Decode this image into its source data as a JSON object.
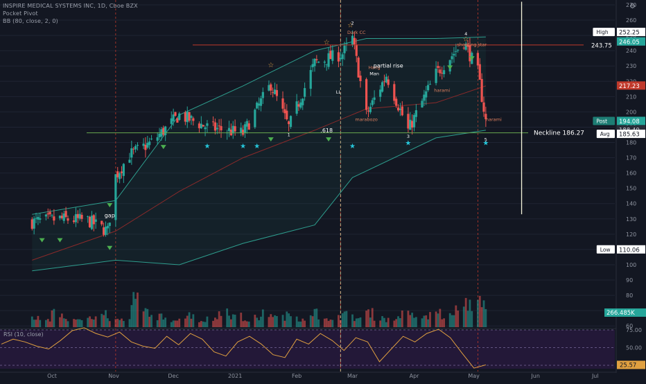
{
  "legend": {
    "symbol": "INSPIRE MEDICAL SYSTEMS INC, 1D, Cboe BZX",
    "indicator_1": "Pocket Pivot",
    "indicator_2": "BB (80, close, 2, 0)"
  },
  "colors": {
    "background": "#131722",
    "up": "#26a69a",
    "down": "#ef5350",
    "ma": "#8a2a2a",
    "bb": "#2e9e8e",
    "rsi": "#e0a040",
    "rsi_pane": "#2a1a40",
    "neckline": "#6aa84f",
    "resistance": "#c0392b",
    "projection": "#f5f5dc"
  },
  "chart_data": {
    "type": "candlestick",
    "symbol": "INSPIRE MEDICAL SYSTEMS INC",
    "interval": "1D",
    "y_ticks": [
      270,
      260,
      250,
      240,
      230,
      220,
      210,
      200,
      190,
      180,
      170,
      160,
      150,
      140,
      130,
      120,
      110,
      100,
      90,
      80,
      70,
      60
    ],
    "x_ticks": [
      "Oct",
      "Nov",
      "Dec",
      "2021",
      "Feb",
      "Mar",
      "Apr",
      "May",
      "Jun",
      "Jul"
    ],
    "ohlc_anchors": [
      {
        "date": "2020-09-21",
        "close": 128
      },
      {
        "date": "2020-10-05",
        "close": 130
      },
      {
        "date": "2020-10-19",
        "close": 129
      },
      {
        "date": "2020-10-29",
        "close": 122
      },
      {
        "date": "2020-11-02",
        "close": 158
      },
      {
        "date": "2020-11-09",
        "close": 172
      },
      {
        "date": "2020-11-20",
        "close": 180
      },
      {
        "date": "2020-12-04",
        "close": 198
      },
      {
        "date": "2020-12-18",
        "close": 190
      },
      {
        "date": "2021-01-05",
        "close": 186
      },
      {
        "date": "2021-01-19",
        "close": 218
      },
      {
        "date": "2021-01-28",
        "close": 190
      },
      {
        "date": "2021-02-10",
        "close": 232
      },
      {
        "date": "2021-02-24",
        "close": 238
      },
      {
        "date": "2021-03-01",
        "close": 248
      },
      {
        "date": "2021-03-08",
        "close": 198
      },
      {
        "date": "2021-03-18",
        "close": 224
      },
      {
        "date": "2021-03-29",
        "close": 188
      },
      {
        "date": "2021-04-12",
        "close": 225
      },
      {
        "date": "2021-04-26",
        "close": 246
      },
      {
        "date": "2021-05-03",
        "close": 226
      },
      {
        "date": "2021-05-07",
        "close": 194
      }
    ],
    "ma_line": [
      {
        "date": "2020-09-21",
        "value": 103
      },
      {
        "date": "2020-11-02",
        "value": 122
      },
      {
        "date": "2020-12-04",
        "value": 148
      },
      {
        "date": "2021-01-05",
        "value": 170
      },
      {
        "date": "2021-02-10",
        "value": 188
      },
      {
        "date": "2021-03-08",
        "value": 202
      },
      {
        "date": "2021-04-12",
        "value": 206
      },
      {
        "date": "2021-05-07",
        "value": 217
      }
    ],
    "bb_upper": [
      {
        "date": "2020-09-21",
        "value": 133
      },
      {
        "date": "2020-11-02",
        "value": 142
      },
      {
        "date": "2020-12-04",
        "value": 198
      },
      {
        "date": "2021-01-05",
        "value": 217
      },
      {
        "date": "2021-02-10",
        "value": 240
      },
      {
        "date": "2021-03-08",
        "value": 248
      },
      {
        "date": "2021-04-12",
        "value": 248
      },
      {
        "date": "2021-05-07",
        "value": 249
      }
    ],
    "bb_lower": [
      {
        "date": "2020-09-21",
        "value": 96
      },
      {
        "date": "2020-11-02",
        "value": 103
      },
      {
        "date": "2020-12-04",
        "value": 100
      },
      {
        "date": "2021-01-05",
        "value": 114
      },
      {
        "date": "2021-02-10",
        "value": 126
      },
      {
        "date": "2021-03-01",
        "value": 157
      },
      {
        "date": "2021-04-12",
        "value": 183
      },
      {
        "date": "2021-05-07",
        "value": 188
      }
    ],
    "price_labels": [
      {
        "text": "High",
        "value": "252.25",
        "price": 252.25,
        "style": "white"
      },
      {
        "text": "",
        "value": "246.05",
        "price": 246.05,
        "style": "teal"
      },
      {
        "text": "",
        "value": "243.75",
        "price": 243.75,
        "style": "plain"
      },
      {
        "text": "",
        "value": "217.23",
        "price": 217.23,
        "style": "red"
      },
      {
        "text": "Post",
        "value": "194.08",
        "price": 194.08,
        "style": "teal"
      },
      {
        "text": "",
        "value": "188.40",
        "price": 188.4,
        "style": "dark"
      },
      {
        "text": "Avg",
        "value": "185.63",
        "price": 185.63,
        "style": "white"
      },
      {
        "text": "Low",
        "value": "110.06",
        "price": 110.06,
        "style": "white"
      }
    ],
    "neckline": {
      "label": "Neckline 186.27",
      "value": 186.27
    },
    "resistance": {
      "value": 243.75
    },
    "annotations": [
      {
        "text": "gap",
        "date": "2020-10-30",
        "price": 131
      },
      {
        "text": "1",
        "date": "2021-01-28",
        "price": 184
      },
      {
        "text": ".618",
        "date": "2021-02-16",
        "price": 186.5
      },
      {
        "text": "LL",
        "date": "2021-02-22",
        "price": 212
      },
      {
        "text": "2",
        "date": "2021-03-01",
        "price": 257
      },
      {
        "text": "Dark CC",
        "date": "2021-03-03",
        "price": 251
      },
      {
        "text": "Hang",
        "date": "2021-03-12",
        "price": 228
      },
      {
        "text": "Man",
        "date": "2021-03-12",
        "price": 224
      },
      {
        "text": "partial rise",
        "date": "2021-03-19",
        "price": 229
      },
      {
        "text": "marabozo",
        "date": "2021-03-08",
        "price": 194
      },
      {
        "text": "3",
        "date": "2021-03-29",
        "price": 183
      },
      {
        "text": "harami",
        "date": "2021-04-15",
        "price": 213
      },
      {
        "text": "4",
        "date": "2021-04-27",
        "price": 250
      },
      {
        "text": "shooting star",
        "date": "2021-04-30",
        "price": 243
      },
      {
        "text": "5",
        "date": "2021-05-07",
        "price": 181
      },
      {
        "text": "harami",
        "date": "2021-05-11",
        "price": 194
      }
    ],
    "projection": {
      "from_price": 272,
      "mid_price": 185,
      "to_price": 133,
      "date": "2021-05-25"
    },
    "volume_badge": "266.485K",
    "rsi": {
      "label": "RSI (10, close)",
      "ticks": [
        75,
        50,
        25
      ],
      "current": 25.57,
      "series": [
        55,
        62,
        58,
        52,
        48,
        60,
        74,
        78,
        70,
        65,
        72,
        58,
        52,
        49,
        66,
        54,
        70,
        62,
        44,
        38,
        58,
        66,
        55,
        40,
        36,
        62,
        55,
        70,
        60,
        46,
        64,
        58,
        30,
        48,
        66,
        58,
        70,
        76,
        64,
        42,
        21,
        25.57
      ]
    },
    "volume_series": [
      40,
      30,
      55,
      35,
      25,
      45,
      60,
      32,
      28,
      110,
      65,
      42,
      30,
      38,
      50,
      27,
      34,
      70,
      45,
      30,
      38,
      55,
      40,
      48,
      35,
      62,
      28,
      44,
      50,
      36,
      58,
      40,
      30,
      52,
      46,
      38,
      60,
      44,
      70,
      90,
      115,
      66
    ]
  }
}
